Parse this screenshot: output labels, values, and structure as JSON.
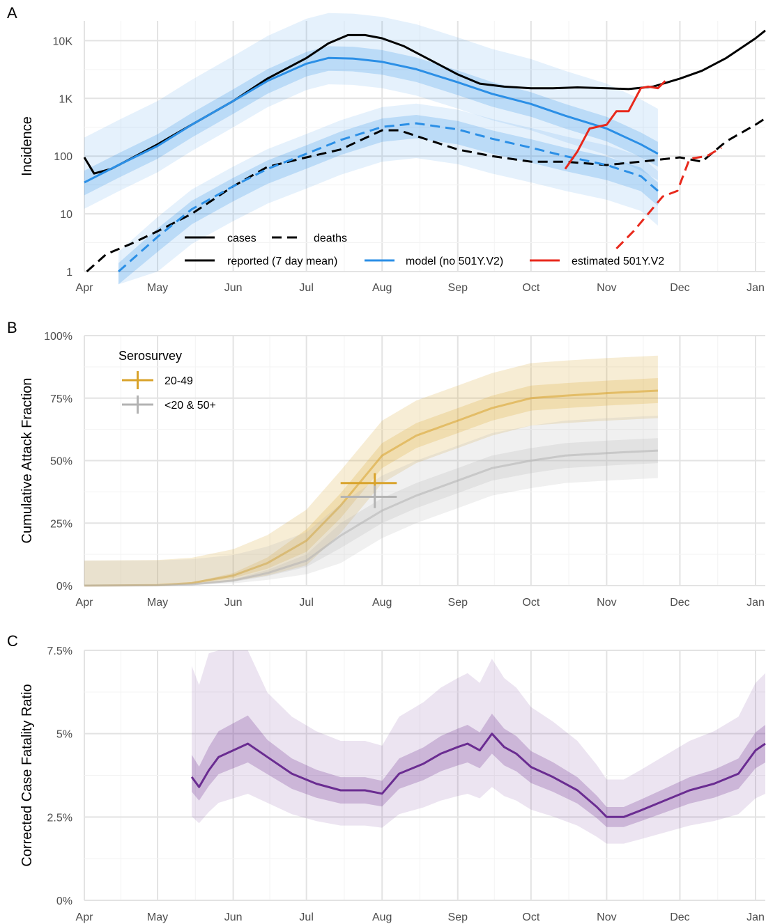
{
  "panel_labels": [
    "A",
    "B",
    "C"
  ],
  "colors": {
    "reported": "#000000",
    "model": "#2b8fe6",
    "estimated": "#e8291c",
    "band_model": "#2b8fe6",
    "sero_2049": "#d9a32b",
    "sero_other": "#b3b3b3",
    "cfr": "#6a2c91"
  },
  "chart_data": [
    {
      "type": "line",
      "panel": "A",
      "ylabel": "Incidence",
      "yscale": "log",
      "ylim": [
        1,
        22000
      ],
      "xlim": [
        "2020-04-01",
        "2021-01-05"
      ],
      "x_ticks": [
        "Apr",
        "May",
        "Jun",
        "Jul",
        "Aug",
        "Sep",
        "Oct",
        "Nov",
        "Dec",
        "Jan"
      ],
      "x_tick_dates": [
        "2020-04-01",
        "2020-05-01",
        "2020-06-01",
        "2020-07-01",
        "2020-08-01",
        "2020-09-01",
        "2020-10-01",
        "2020-11-01",
        "2020-12-01",
        "2021-01-01"
      ],
      "y_ticks": [
        1,
        10,
        100,
        1000,
        10000
      ],
      "y_tick_labels": [
        "1",
        "10",
        "100",
        "1K",
        "10K"
      ],
      "grid": true,
      "legend": {
        "placement": "bottom-center",
        "linetype_items": [
          {
            "label": "cases",
            "style": "solid"
          },
          {
            "label": "deaths",
            "style": "dashed"
          }
        ],
        "color_items": [
          {
            "label": "reported (7 day mean)",
            "color": "#000000"
          },
          {
            "label": "model (no 501Y.V2)",
            "color": "#2b8fe6"
          },
          {
            "label": "estimated 501Y.V2",
            "color": "#e8291c"
          }
        ]
      },
      "series": [
        {
          "name": "reported (7 day mean)",
          "measure": "cases",
          "style": "solid",
          "x": [
            "2020-04-01",
            "2020-04-05",
            "2020-04-12",
            "2020-04-20",
            "2020-05-01",
            "2020-05-15",
            "2020-06-01",
            "2020-06-15",
            "2020-07-01",
            "2020-07-10",
            "2020-07-18",
            "2020-07-25",
            "2020-08-01",
            "2020-08-10",
            "2020-08-20",
            "2020-09-01",
            "2020-09-10",
            "2020-09-20",
            "2020-10-01",
            "2020-10-10",
            "2020-10-20",
            "2020-11-01",
            "2020-11-10",
            "2020-11-20",
            "2020-12-01",
            "2020-12-10",
            "2020-12-20",
            "2021-01-01",
            "2021-01-05"
          ],
          "y": [
            95,
            50,
            60,
            90,
            160,
            350,
            900,
            2200,
            5000,
            9000,
            12500,
            12500,
            11000,
            8000,
            4800,
            2600,
            1800,
            1600,
            1500,
            1500,
            1550,
            1500,
            1450,
            1600,
            2200,
            3000,
            5000,
            11000,
            15000
          ]
        },
        {
          "name": "reported (7 day mean)",
          "measure": "deaths",
          "style": "dashed",
          "x": [
            "2020-04-02",
            "2020-04-10",
            "2020-04-20",
            "2020-05-01",
            "2020-05-15",
            "2020-06-01",
            "2020-06-15",
            "2020-07-01",
            "2020-07-15",
            "2020-08-01",
            "2020-08-08",
            "2020-08-20",
            "2020-09-01",
            "2020-09-15",
            "2020-10-01",
            "2020-10-15",
            "2020-11-01",
            "2020-11-15",
            "2020-12-01",
            "2020-12-10",
            "2020-12-20",
            "2021-01-01",
            "2021-01-05"
          ],
          "y": [
            1,
            2,
            3,
            5,
            10,
            30,
            65,
            95,
            130,
            280,
            280,
            190,
            130,
            100,
            80,
            80,
            70,
            80,
            95,
            80,
            180,
            350,
            450
          ]
        },
        {
          "name": "model (no 501Y.V2)",
          "measure": "cases",
          "style": "solid",
          "x": [
            "2020-04-01",
            "2020-04-15",
            "2020-05-01",
            "2020-05-15",
            "2020-06-01",
            "2020-06-15",
            "2020-07-01",
            "2020-07-10",
            "2020-07-20",
            "2020-08-01",
            "2020-08-15",
            "2020-09-01",
            "2020-09-15",
            "2020-10-01",
            "2020-10-15",
            "2020-11-01",
            "2020-11-15",
            "2020-11-22"
          ],
          "y": [
            35,
            70,
            150,
            350,
            900,
            2000,
            4000,
            5000,
            4900,
            4300,
            3200,
            1900,
            1200,
            800,
            500,
            300,
            160,
            110
          ]
        },
        {
          "name": "model (no 501Y.V2)",
          "measure": "deaths",
          "style": "dashed",
          "x": [
            "2020-04-15",
            "2020-05-01",
            "2020-05-15",
            "2020-06-01",
            "2020-06-15",
            "2020-07-01",
            "2020-07-15",
            "2020-08-01",
            "2020-08-15",
            "2020-09-01",
            "2020-09-15",
            "2020-10-01",
            "2020-10-15",
            "2020-11-01",
            "2020-11-15",
            "2020-11-22"
          ],
          "y": [
            1,
            4,
            12,
            30,
            60,
            110,
            190,
            320,
            370,
            290,
            200,
            140,
            100,
            70,
            45,
            25
          ]
        },
        {
          "name": "estimated 501Y.V2",
          "measure": "cases",
          "style": "solid",
          "x": [
            "2020-10-15",
            "2020-10-20",
            "2020-10-25",
            "2020-11-01",
            "2020-11-05",
            "2020-11-10",
            "2020-11-15",
            "2020-11-18",
            "2020-11-22",
            "2020-11-25"
          ],
          "y": [
            60,
            120,
            300,
            350,
            600,
            600,
            1500,
            1600,
            1500,
            2000
          ]
        },
        {
          "name": "estimated 501Y.V2",
          "measure": "deaths",
          "style": "dashed",
          "x": [
            "2020-11-05",
            "2020-11-12",
            "2020-11-18",
            "2020-11-24",
            "2020-11-30",
            "2020-12-05",
            "2020-12-12",
            "2020-12-18"
          ],
          "y": [
            2.5,
            5,
            10,
            20,
            25,
            90,
            100,
            140
          ]
        }
      ]
    },
    {
      "type": "line",
      "panel": "B",
      "ylabel": "Cumulative Attack Fraction",
      "ylim": [
        0,
        1
      ],
      "xlim": [
        "2020-04-01",
        "2021-01-05"
      ],
      "x_ticks": [
        "Apr",
        "May",
        "Jun",
        "Jul",
        "Aug",
        "Sep",
        "Oct",
        "Nov",
        "Dec",
        "Jan"
      ],
      "x_tick_dates": [
        "2020-04-01",
        "2020-05-01",
        "2020-06-01",
        "2020-07-01",
        "2020-08-01",
        "2020-09-01",
        "2020-10-01",
        "2020-11-01",
        "2020-12-01",
        "2021-01-01"
      ],
      "y_ticks": [
        0,
        0.25,
        0.5,
        0.75,
        1
      ],
      "y_tick_labels": [
        "0%",
        "25%",
        "50%",
        "75%",
        "100%"
      ],
      "grid": true,
      "legend": {
        "title": "Serosurvey",
        "placement": "top-left",
        "items": [
          "20-49",
          "<20 & 50+"
        ]
      },
      "series": [
        {
          "name": "20-49",
          "x": [
            "2020-04-01",
            "2020-05-01",
            "2020-05-15",
            "2020-06-01",
            "2020-06-15",
            "2020-07-01",
            "2020-07-15",
            "2020-08-01",
            "2020-08-15",
            "2020-09-01",
            "2020-09-15",
            "2020-10-01",
            "2020-10-15",
            "2020-11-01",
            "2020-11-22"
          ],
          "y": [
            0,
            0.002,
            0.01,
            0.04,
            0.09,
            0.18,
            0.32,
            0.52,
            0.6,
            0.66,
            0.71,
            0.75,
            0.76,
            0.77,
            0.78
          ]
        },
        {
          "name": "<20 & 50+",
          "x": [
            "2020-04-01",
            "2020-05-01",
            "2020-05-15",
            "2020-06-01",
            "2020-06-15",
            "2020-07-01",
            "2020-07-15",
            "2020-08-01",
            "2020-08-15",
            "2020-09-01",
            "2020-09-15",
            "2020-10-01",
            "2020-10-15",
            "2020-11-01",
            "2020-11-22"
          ],
          "y": [
            0,
            0.001,
            0.005,
            0.02,
            0.05,
            0.1,
            0.2,
            0.3,
            0.36,
            0.42,
            0.47,
            0.5,
            0.52,
            0.53,
            0.54
          ]
        }
      ],
      "serosurvey_points": [
        {
          "group": "20-49",
          "x": "2020-07-29",
          "y": 0.41,
          "x_range": [
            "2020-07-15",
            "2020-08-07"
          ],
          "y_range": [
            0.37,
            0.45
          ]
        },
        {
          "group": "<20 & 50+",
          "x": "2020-07-29",
          "y": 0.355,
          "x_range": [
            "2020-07-15",
            "2020-08-07"
          ],
          "y_range": [
            0.31,
            0.4
          ]
        }
      ]
    },
    {
      "type": "line",
      "panel": "C",
      "ylabel": "Corrected Case Fatality Ratio",
      "ylim": [
        0,
        0.075
      ],
      "xlim": [
        "2020-04-01",
        "2021-01-05"
      ],
      "x_ticks": [
        "Apr",
        "May",
        "Jun",
        "Jul",
        "Aug",
        "Sep",
        "Oct",
        "Nov",
        "Dec",
        "Jan"
      ],
      "x_tick_dates": [
        "2020-04-01",
        "2020-05-01",
        "2020-06-01",
        "2020-07-01",
        "2020-08-01",
        "2020-09-01",
        "2020-10-01",
        "2020-11-01",
        "2020-12-01",
        "2021-01-01"
      ],
      "y_ticks": [
        0,
        0.025,
        0.05,
        0.075
      ],
      "y_tick_labels": [
        "0%",
        "2.5%",
        "5%",
        "7.5%"
      ],
      "grid": true,
      "series": [
        {
          "name": "",
          "x": [
            "2020-05-15",
            "2020-05-18",
            "2020-05-22",
            "2020-05-26",
            "2020-06-01",
            "2020-06-07",
            "2020-06-15",
            "2020-06-25",
            "2020-07-05",
            "2020-07-15",
            "2020-07-25",
            "2020-08-01",
            "2020-08-08",
            "2020-08-18",
            "2020-08-25",
            "2020-09-01",
            "2020-09-05",
            "2020-09-10",
            "2020-09-15",
            "2020-09-20",
            "2020-09-25",
            "2020-10-01",
            "2020-10-10",
            "2020-10-20",
            "2020-10-28",
            "2020-11-01",
            "2020-11-08",
            "2020-11-15",
            "2020-11-25",
            "2020-12-05",
            "2020-12-15",
            "2020-12-25",
            "2021-01-01",
            "2021-01-05"
          ],
          "y": [
            0.037,
            0.034,
            0.039,
            0.043,
            0.045,
            0.047,
            0.043,
            0.038,
            0.035,
            0.033,
            0.033,
            0.032,
            0.038,
            0.041,
            0.044,
            0.046,
            0.047,
            0.045,
            0.05,
            0.046,
            0.044,
            0.04,
            0.037,
            0.033,
            0.028,
            0.025,
            0.025,
            0.027,
            0.03,
            0.033,
            0.035,
            0.038,
            0.045,
            0.047
          ]
        }
      ]
    }
  ]
}
